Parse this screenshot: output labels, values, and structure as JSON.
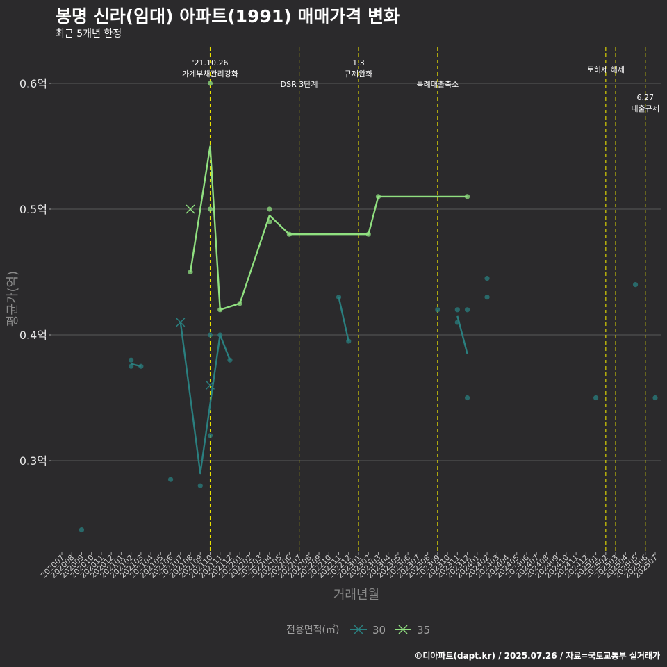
{
  "title": "봉명 신라(임대) 아파트(1991) 매매가격 변화",
  "subtitle": "최근 5개년 한정",
  "caption": "©디아파트(dapt.kr) / 2025.07.26 / 자료=국토교통부 실거래가",
  "chart_data": {
    "type": "line",
    "xlabel": "거래년월",
    "ylabel": "평균가(억)",
    "ylim": [
      0.23,
      0.635
    ],
    "yticks": [
      0.3,
      0.4,
      0.5,
      0.6
    ],
    "ytick_labels": [
      "0.3억",
      "0.4억",
      "0.5억",
      "0.6억"
    ],
    "categories": [
      "202007",
      "202008",
      "202009",
      "202010",
      "202011",
      "202012",
      "202101",
      "202102",
      "202103",
      "202104",
      "202105",
      "202106",
      "202107",
      "202108",
      "202109",
      "202110",
      "202111",
      "202112",
      "202201",
      "202202",
      "202203",
      "202204",
      "202205",
      "202206",
      "202207",
      "202208",
      "202209",
      "202210",
      "202211",
      "202212",
      "202301",
      "202302",
      "202303",
      "202304",
      "202305",
      "202306",
      "202307",
      "202308",
      "202309",
      "202310",
      "202311",
      "202312",
      "202401",
      "202402",
      "202403",
      "202404",
      "202405",
      "202406",
      "202407",
      "202408",
      "202409",
      "202410",
      "202411",
      "202412",
      "202501",
      "202502",
      "202503",
      "202504",
      "202505",
      "202506",
      "202507"
    ],
    "legend_title": "전용면적(㎡)",
    "series": [
      {
        "name": "30",
        "color": "#2a7f7f",
        "line": [
          [
            "202102",
            0.377
          ],
          [
            "202103",
            0.375
          ],
          [
            "202106",
            null
          ],
          [
            "202107",
            0.41
          ],
          [
            "202109",
            0.29
          ],
          [
            "202111",
            0.4
          ],
          [
            "202112",
            0.38
          ]
        ],
        "line2": [
          [
            "202211",
            0.43
          ],
          [
            "202212",
            0.395
          ]
        ],
        "line3": [
          [
            "202311",
            0.415
          ],
          [
            "202312",
            0.385
          ]
        ],
        "points": [
          [
            "202009",
            0.245
          ],
          [
            "202102",
            0.38
          ],
          [
            "202102",
            0.375
          ],
          [
            "202103",
            0.375
          ],
          [
            "202106",
            0.285
          ],
          [
            "202109",
            0.28
          ],
          [
            "202110",
            0.4
          ],
          [
            "202110",
            0.32
          ],
          [
            "202111",
            0.4
          ],
          [
            "202112",
            0.38
          ],
          [
            "202211",
            0.43
          ],
          [
            "202212",
            0.395
          ],
          [
            "202309",
            0.42
          ],
          [
            "202311",
            0.42
          ],
          [
            "202311",
            0.41
          ],
          [
            "202312",
            0.42
          ],
          [
            "202312",
            0.35
          ],
          [
            "202402",
            0.445
          ],
          [
            "202402",
            0.43
          ],
          [
            "202501",
            0.35
          ],
          [
            "202505",
            0.44
          ],
          [
            "202507",
            0.35
          ]
        ],
        "crosses": [
          [
            "202107",
            0.41
          ],
          [
            "202110",
            0.36
          ]
        ]
      },
      {
        "name": "35",
        "color": "#90e080",
        "line": [
          [
            "202108",
            0.45
          ],
          [
            "202110",
            0.55
          ],
          [
            "202111",
            0.42
          ],
          [
            "202201",
            0.425
          ],
          [
            "202204",
            0.495
          ],
          [
            "202206",
            0.48
          ],
          [
            "202302",
            0.48
          ],
          [
            "202303",
            0.51
          ],
          [
            "202312",
            0.51
          ]
        ],
        "points": [
          [
            "202108",
            0.45
          ],
          [
            "202110",
            0.6
          ],
          [
            "202110",
            0.5
          ],
          [
            "202111",
            0.42
          ],
          [
            "202201",
            0.425
          ],
          [
            "202204",
            0.5
          ],
          [
            "202204",
            0.49
          ],
          [
            "202206",
            0.48
          ],
          [
            "202302",
            0.48
          ],
          [
            "202303",
            0.51
          ],
          [
            "202312",
            0.51
          ]
        ],
        "crosses": [
          [
            "202108",
            0.5
          ]
        ]
      }
    ],
    "events": [
      {
        "month": "202110",
        "lines": [
          "'21.10.26",
          "가계부채관리강화"
        ],
        "tier": 0
      },
      {
        "month": "202207",
        "lines": [
          "DSR 3단계"
        ],
        "tier": 2
      },
      {
        "month": "202301",
        "lines": [
          "1.3",
          "규제완화"
        ],
        "tier": 0
      },
      {
        "month": "202309",
        "lines": [
          "특례대출축소"
        ],
        "tier": 2
      },
      {
        "month": "202502",
        "lines": [
          "토허제 해제"
        ],
        "tier": 1
      },
      {
        "month": "202503",
        "lines": [],
        "tier": 1
      },
      {
        "month": "202506",
        "lines": [
          "6.27",
          "대출규제"
        ],
        "tier": 3
      }
    ]
  }
}
